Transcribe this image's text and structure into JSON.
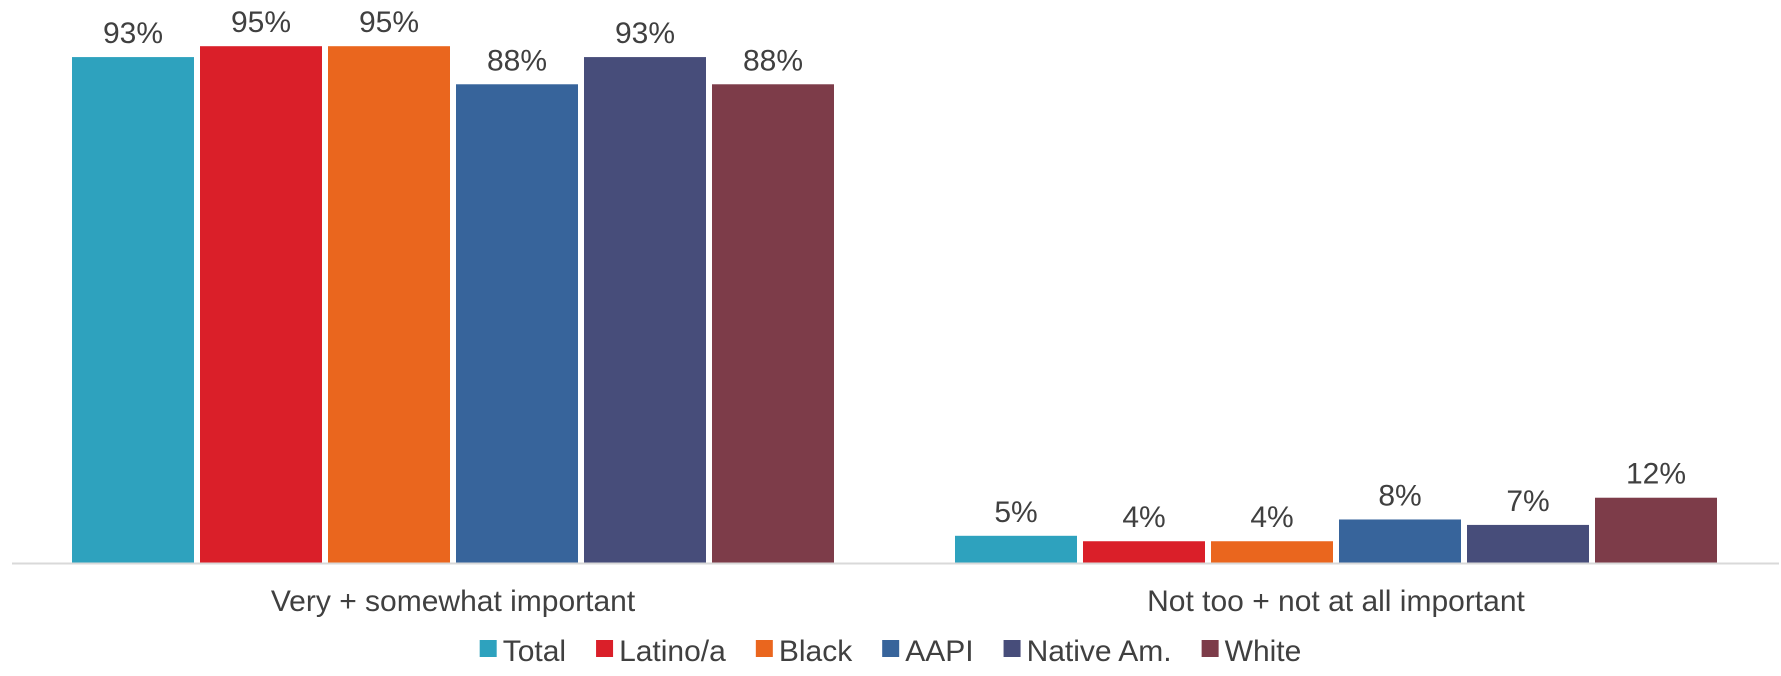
{
  "chart_data": {
    "type": "bar",
    "categories": [
      "Very + somewhat important",
      "Not too + not at all important"
    ],
    "series": [
      {
        "name": "Total",
        "color": "#2ea2be",
        "values": [
          93,
          5
        ]
      },
      {
        "name": "Latino/a",
        "color": "#da1f29",
        "values": [
          95,
          4
        ]
      },
      {
        "name": "Black",
        "color": "#ea661e",
        "values": [
          95,
          4
        ]
      },
      {
        "name": "AAPI",
        "color": "#37649b",
        "values": [
          88,
          8
        ]
      },
      {
        "name": "Native Am.",
        "color": "#474d7a",
        "values": [
          93,
          7
        ]
      },
      {
        "name": "White",
        "color": "#7d3c49",
        "values": [
          88,
          12
        ]
      }
    ],
    "value_labels": [
      [
        "93%",
        "5%"
      ],
      [
        "95%",
        "4%"
      ],
      [
        "95%",
        "4%"
      ],
      [
        "88%",
        "8%"
      ],
      [
        "93%",
        "7%"
      ],
      [
        "88%",
        "12%"
      ]
    ],
    "ylim": [
      0,
      100
    ],
    "grid": false,
    "legend_position": "bottom",
    "axis_color": "#d9d9d9"
  }
}
